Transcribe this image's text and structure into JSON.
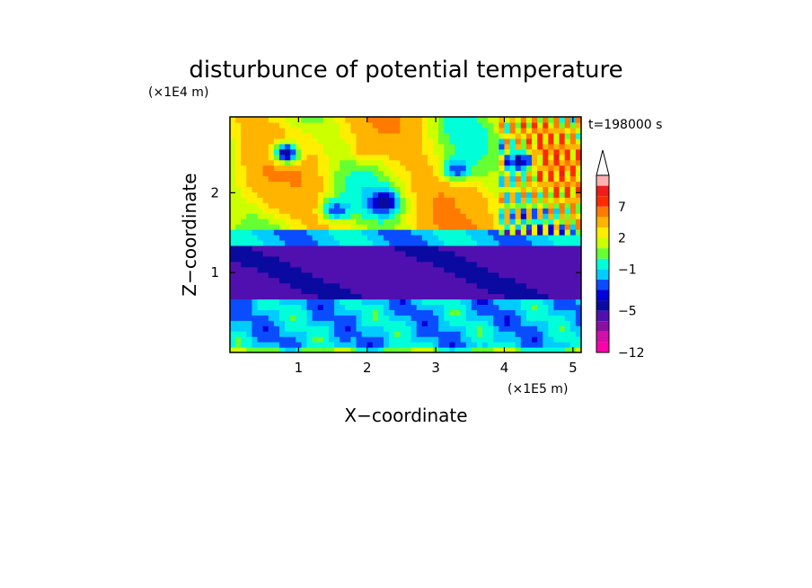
{
  "chart_data": {
    "type": "heatmap",
    "title": "disturbunce of potential temperature",
    "xlabel": "X−coordinate",
    "ylabel": "Z−coordinate",
    "x_unit": "(×1E5 m)",
    "y_unit": "(×1E4 m)",
    "time_label": "t=198000 s",
    "xlim": [
      0,
      5.12
    ],
    "ylim": [
      0,
      2.95
    ],
    "x_ticks": [
      {
        "v": 1,
        "label": "1"
      },
      {
        "v": 2,
        "label": "2"
      },
      {
        "v": 3,
        "label": "3"
      },
      {
        "v": 4,
        "label": "4"
      },
      {
        "v": 5,
        "label": "5"
      }
    ],
    "y_ticks": [
      {
        "v": 1,
        "label": "1"
      },
      {
        "v": 2,
        "label": "2"
      }
    ],
    "colorbar": {
      "levels": [
        -12,
        -10,
        -8,
        -7,
        -5,
        -4,
        -3,
        -2,
        -1,
        0,
        1,
        2,
        3,
        5,
        7,
        9,
        11
      ],
      "colors": [
        "#ff00a8",
        "#d20fa8",
        "#8a0fa0",
        "#5010b0",
        "#0a0aa0",
        "#0000d8",
        "#0a4cff",
        "#00ccff",
        "#00ffd8",
        "#66ff33",
        "#ccff00",
        "#ffee00",
        "#ffb400",
        "#ff7a00",
        "#ff2a00",
        "#ee1c1c",
        "#ffb0b0"
      ],
      "extend_max": true,
      "tick_labels": [
        {
          "v": -12,
          "label": "−12"
        },
        {
          "v": -5,
          "label": "−5"
        },
        {
          "v": -1,
          "label": "−1"
        },
        {
          "v": 2,
          "label": "2"
        },
        {
          "v": 7,
          "label": "7"
        }
      ]
    },
    "field_structure": [
      {
        "z_range": [
          0,
          0.1
        ],
        "value": 0.3
      },
      {
        "z_range": [
          0.1,
          0.7
        ],
        "value": -1.5
      },
      {
        "z_range": [
          0.7,
          1.35
        ],
        "value": -5.5
      },
      {
        "z_range": [
          1.35,
          1.55
        ],
        "value": -1.5
      },
      {
        "z_range": [
          1.55,
          2.95
        ],
        "value": 2.5
      }
    ],
    "features": [
      {
        "x": 0.82,
        "z": 2.5,
        "value": -5
      },
      {
        "x": 1.55,
        "z": 1.8,
        "value": -3
      },
      {
        "x": 2.25,
        "z": 1.88,
        "value": -5
      },
      {
        "x": 3.3,
        "z": 2.3,
        "value": -3
      },
      {
        "x": 4.22,
        "z": 2.4,
        "value": -5
      },
      {
        "x": 0.75,
        "z": 2.0,
        "value": 4
      },
      {
        "x": 2.0,
        "z": 2.55,
        "value": 4
      },
      {
        "x": 3.5,
        "z": 1.85,
        "value": 4
      }
    ]
  }
}
